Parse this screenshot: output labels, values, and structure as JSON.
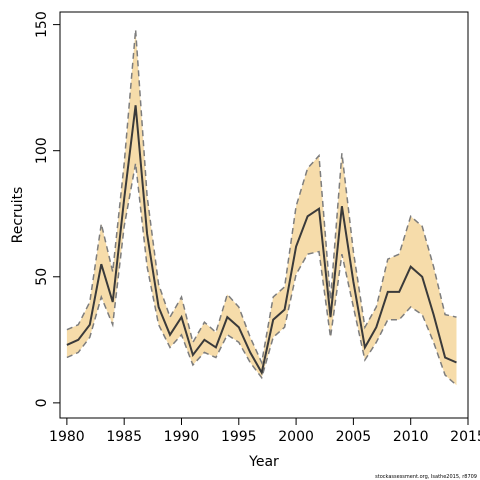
{
  "chart_data": {
    "type": "line",
    "xlabel": "Year",
    "ylabel": "Recruits",
    "xlim": [
      1979.4,
      2015.0
    ],
    "ylim": [
      -6,
      155
    ],
    "x_ticks": [
      1980,
      1985,
      1990,
      1995,
      2000,
      2005,
      2010,
      2015
    ],
    "y_ticks": [
      0,
      50,
      100,
      150
    ],
    "grid": false,
    "legend": "none",
    "colors": {
      "band": "#f6dcaa",
      "bounds": "#7d7d7d",
      "estimate": "#3a3a3a",
      "frame": "#000000"
    },
    "x": [
      1980,
      1981,
      1982,
      1983,
      1984,
      1985,
      1986,
      1987,
      1988,
      1989,
      1990,
      1991,
      1992,
      1993,
      1994,
      1995,
      1996,
      1997,
      1998,
      1999,
      2000,
      2001,
      2002,
      2003,
      2004,
      2005,
      2006,
      2007,
      2008,
      2009,
      2010,
      2011,
      2012,
      2013,
      2014
    ],
    "series": [
      {
        "role": "estimate",
        "values": [
          23,
          25,
          31,
          55,
          40,
          81,
          118,
          67,
          38,
          27,
          34,
          19,
          25,
          22,
          34,
          30,
          20,
          12,
          33,
          37,
          62,
          74,
          77,
          34,
          78,
          48,
          22,
          30,
          44,
          44,
          54,
          50,
          35,
          18,
          16
        ]
      },
      {
        "role": "lower",
        "values": [
          18,
          20,
          26,
          42,
          31,
          70,
          95,
          54,
          31,
          22,
          27,
          15,
          20,
          18,
          27,
          24,
          16,
          10,
          26,
          30,
          51,
          59,
          60,
          26,
          59,
          38,
          17,
          24,
          33,
          33,
          38,
          35,
          24,
          11,
          7
        ]
      },
      {
        "role": "upper",
        "values": [
          29,
          31,
          40,
          71,
          52,
          95,
          148,
          82,
          47,
          34,
          42,
          24,
          32,
          28,
          43,
          38,
          26,
          16,
          42,
          46,
          78,
          93,
          98,
          41,
          99,
          60,
          30,
          38,
          57,
          59,
          74,
          70,
          54,
          35,
          34
        ]
      }
    ]
  },
  "footer": {
    "credit": "stockassessment.org, Isathe2015, r8709"
  }
}
